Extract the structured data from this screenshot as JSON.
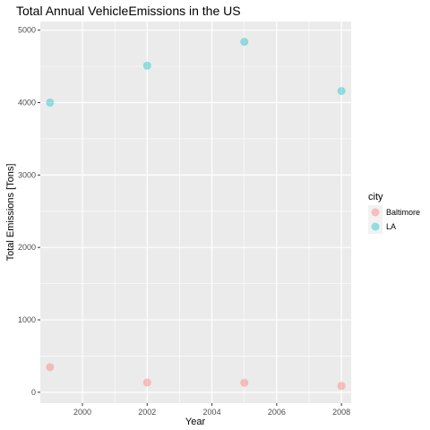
{
  "chart_data": {
    "type": "scatter",
    "title": "Total Annual VehicleEmissions in the US",
    "xlabel": "Year",
    "ylabel": "Total Emissions [Tons]",
    "xlim": [
      1998.7,
      2008.3
    ],
    "ylim": [
      -150,
      5120
    ],
    "xticks": [
      2000,
      2002,
      2004,
      2006,
      2008
    ],
    "yticks": [
      0,
      1000,
      2000,
      3000,
      4000,
      5000
    ],
    "grid": true,
    "legend": {
      "title": "city",
      "placement": "right"
    },
    "series": [
      {
        "name": "Baltimore",
        "color": "#F8766D",
        "x": [
          1999,
          2002,
          2005,
          2008
        ],
        "y": [
          347,
          134,
          130,
          88
        ]
      },
      {
        "name": "LA",
        "color": "#00BFC4",
        "x": [
          1999,
          2002,
          2005,
          2008
        ],
        "y": [
          4000,
          4510,
          4840,
          4160
        ]
      }
    ],
    "panel_color": "#EBEBEB",
    "grid_color": "#FFFFFF"
  }
}
